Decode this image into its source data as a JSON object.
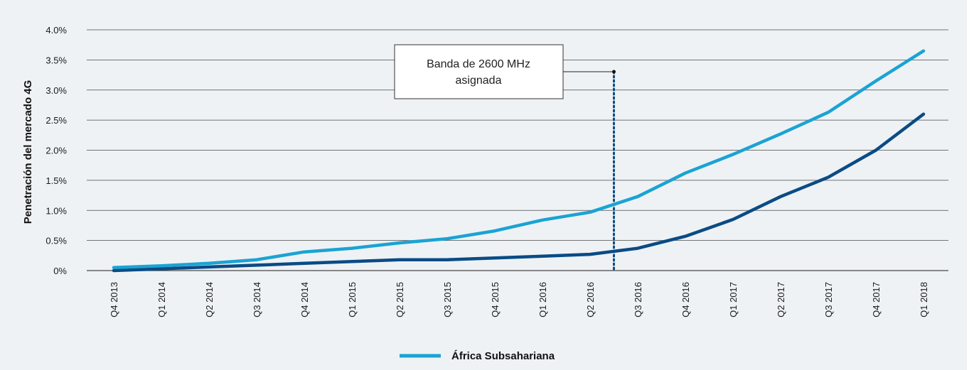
{
  "colors": {
    "series_light": "#1ba3d3",
    "series_dark": "#0b4b85",
    "grid": "#4a4a4a",
    "background": "#eef2f5"
  },
  "chart_data": {
    "type": "line",
    "title": "",
    "ylabel": "Penetración del mercado 4G",
    "xlabel": "",
    "ylim": [
      0,
      4.0
    ],
    "yticks": [
      "0%",
      "0.5%",
      "1.0%",
      "1.5%",
      "2.0%",
      "2.5%",
      "3.0%",
      "3.5%",
      "4.0%"
    ],
    "grid": true,
    "legend_position": "bottom-center",
    "categories": [
      "Q4 2013",
      "Q1 2014",
      "Q2 2014",
      "Q3 2014",
      "Q4 2014",
      "Q1 2015",
      "Q2 2015",
      "Q3 2015",
      "Q4 2015",
      "Q1 2016",
      "Q2 2016",
      "Q3 2016",
      "Q4 2016",
      "Q1 2017",
      "Q2 2017",
      "Q3 2017",
      "Q4 2017",
      "Q1 2018"
    ],
    "series": [
      {
        "name": "África Subsahariana",
        "color": "#1ba3d3",
        "values": [
          0.05,
          0.08,
          0.12,
          0.18,
          0.31,
          0.37,
          0.46,
          0.53,
          0.66,
          0.84,
          0.97,
          1.23,
          1.62,
          1.93,
          2.27,
          2.63,
          3.15,
          3.65
        ]
      },
      {
        "color": "#0b4b85",
        "values": [
          0.0,
          0.03,
          0.06,
          0.09,
          0.12,
          0.15,
          0.18,
          0.18,
          0.21,
          0.24,
          0.27,
          0.37,
          0.57,
          0.85,
          1.23,
          1.55,
          2.0,
          2.6
        ]
      }
    ],
    "annotation": {
      "text_line1": "Banda de 2600 MHz",
      "text_line2": "asignada",
      "between": [
        "Q2 2016",
        "Q3 2016"
      ]
    }
  }
}
